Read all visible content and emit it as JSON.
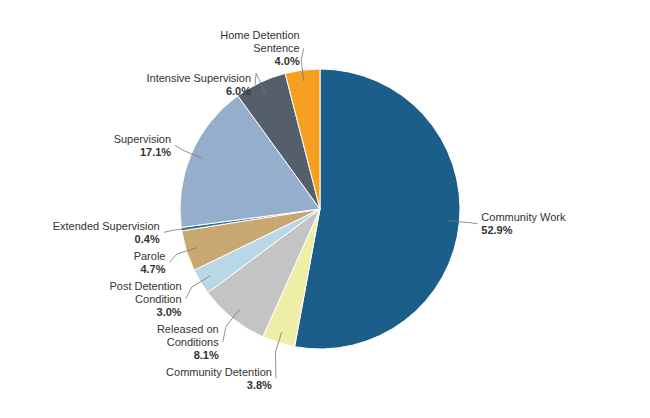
{
  "chart_data": {
    "type": "pie",
    "categories": [
      "Community Work",
      "Community Detention",
      "Released on\nConditions",
      "Post Detention\nCondition",
      "Parole",
      "Extended Supervision",
      "Supervision",
      "Intensive Supervision",
      "Home Detention\nSentence"
    ],
    "values": [
      52.9,
      3.8,
      8.1,
      3.0,
      4.7,
      0.4,
      17.1,
      6.0,
      4.0
    ],
    "value_labels": [
      "52.9%",
      "3.8%",
      "8.1%",
      "3.0%",
      "4.7%",
      "0.4%",
      "17.1%",
      "6.0%",
      "4.0%"
    ],
    "colors": [
      "#1B5E8A",
      "#EEEEA6",
      "#C4C4C4",
      "#B8D8E8",
      "#C8A870",
      "#3A6E8A",
      "#94AECB",
      "#555F6B",
      "#F5A020"
    ],
    "data_labels": true
  }
}
